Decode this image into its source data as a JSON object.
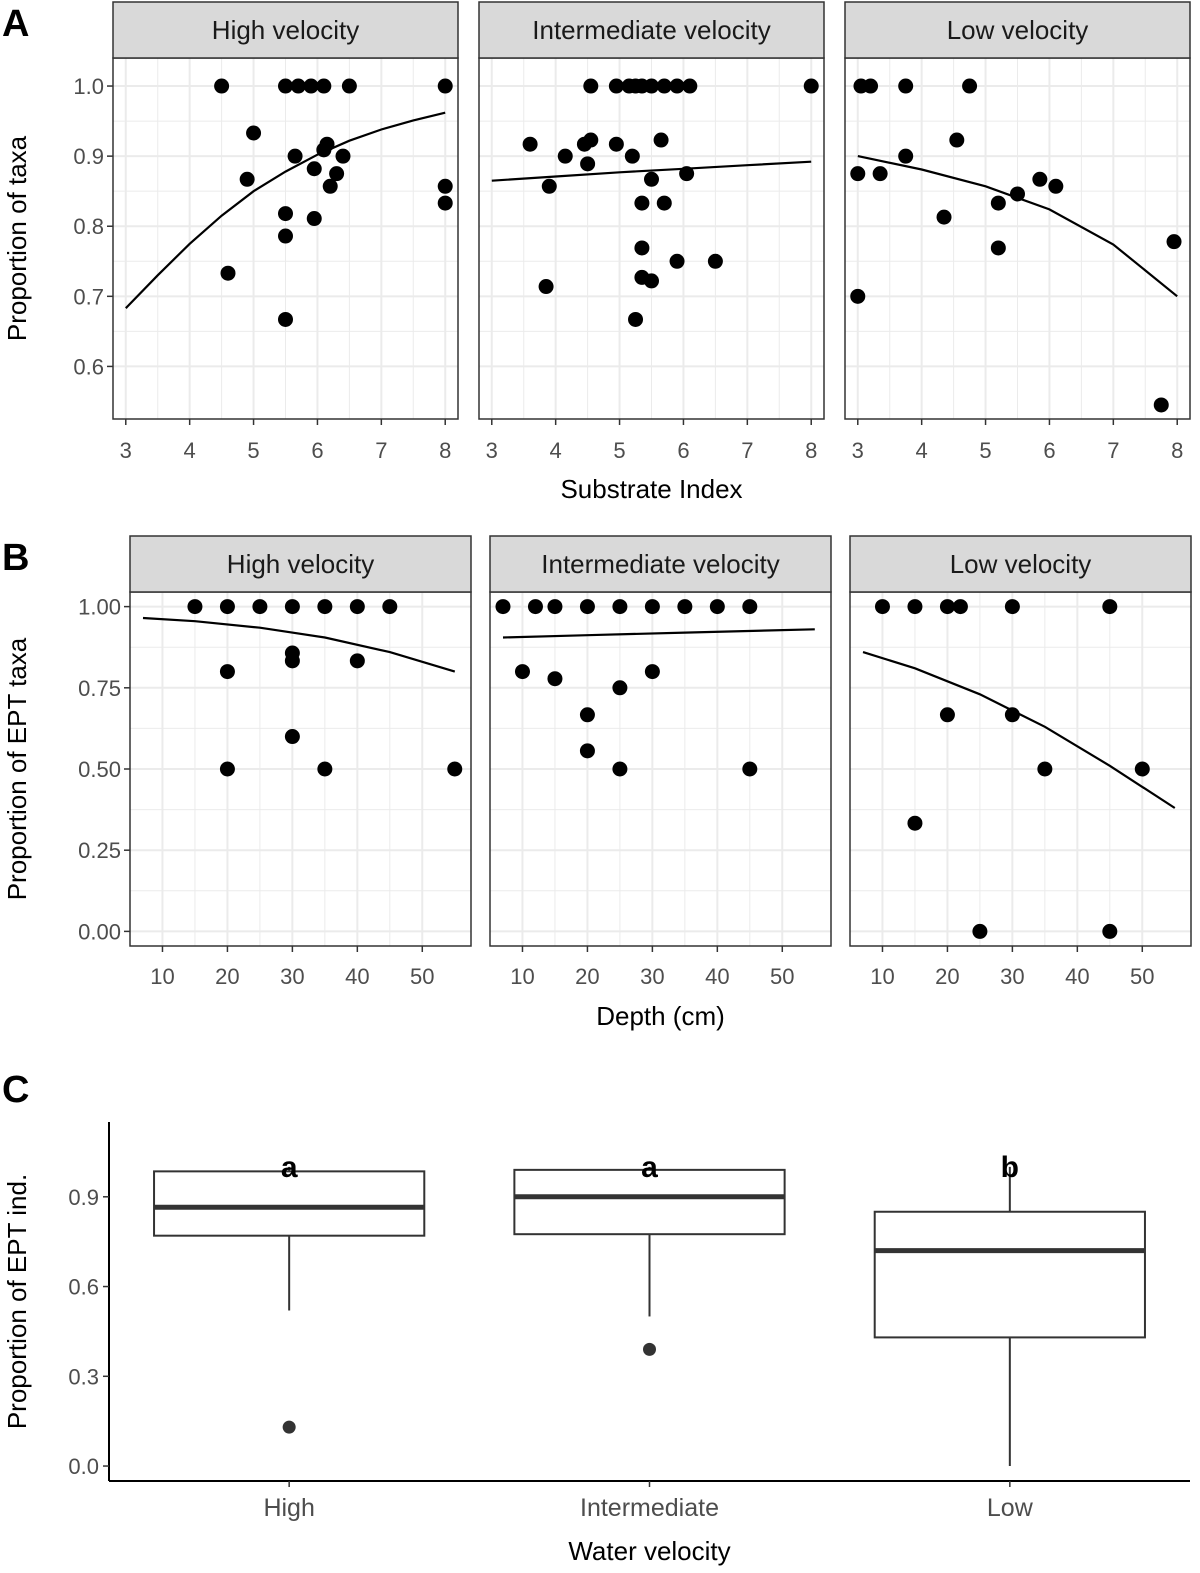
{
  "colors": {
    "point": "#000000",
    "grid": "#ebebeb",
    "strip_bg": "#d9d9d9",
    "frame": "#333333",
    "box_point": "#333333"
  },
  "chart_data": [
    {
      "panel": "A",
      "type": "scatter",
      "xlabel": "Substrate Index",
      "ylabel": "Proportion of taxa",
      "xlim": [
        2.8,
        8.2
      ],
      "ylim": [
        0.525,
        1.04
      ],
      "x_ticks": [
        3,
        4,
        5,
        6,
        7,
        8
      ],
      "y_ticks": [
        0.6,
        0.7,
        0.8,
        0.9,
        1.0
      ],
      "y_tick_labels": [
        "0.6",
        "0.7",
        "0.8",
        "0.9",
        "1.0"
      ],
      "facets": [
        {
          "label": "High velocity",
          "points": [
            [
              4.5,
              1.0
            ],
            [
              5.5,
              1.0
            ],
            [
              5.7,
              1.0
            ],
            [
              5.9,
              1.0
            ],
            [
              6.1,
              1.0
            ],
            [
              6.5,
              1.0
            ],
            [
              8.0,
              1.0
            ],
            [
              5.0,
              0.933
            ],
            [
              5.65,
              0.9
            ],
            [
              6.15,
              0.917
            ],
            [
              6.1,
              0.909
            ],
            [
              6.4,
              0.9
            ],
            [
              5.95,
              0.882
            ],
            [
              6.3,
              0.875
            ],
            [
              4.9,
              0.867
            ],
            [
              6.2,
              0.857
            ],
            [
              8.0,
              0.857
            ],
            [
              8.0,
              0.833
            ],
            [
              5.5,
              0.818
            ],
            [
              5.95,
              0.811
            ],
            [
              5.5,
              0.786
            ],
            [
              4.6,
              0.733
            ],
            [
              5.5,
              0.667
            ]
          ],
          "fit": [
            [
              3.0,
              0.683
            ],
            [
              3.5,
              0.73
            ],
            [
              4.0,
              0.775
            ],
            [
              4.5,
              0.815
            ],
            [
              5.0,
              0.85
            ],
            [
              5.5,
              0.878
            ],
            [
              6.0,
              0.902
            ],
            [
              6.5,
              0.922
            ],
            [
              7.0,
              0.938
            ],
            [
              7.5,
              0.951
            ],
            [
              8.0,
              0.962
            ]
          ]
        },
        {
          "label": "Intermediate velocity",
          "points": [
            [
              4.55,
              1.0
            ],
            [
              4.95,
              1.0
            ],
            [
              5.15,
              1.0
            ],
            [
              5.25,
              1.0
            ],
            [
              5.35,
              1.0
            ],
            [
              5.5,
              1.0
            ],
            [
              5.7,
              1.0
            ],
            [
              5.9,
              1.0
            ],
            [
              6.1,
              1.0
            ],
            [
              8.0,
              1.0
            ],
            [
              3.6,
              0.917
            ],
            [
              4.45,
              0.917
            ],
            [
              4.55,
              0.923
            ],
            [
              4.95,
              0.917
            ],
            [
              4.15,
              0.9
            ],
            [
              5.2,
              0.9
            ],
            [
              4.5,
              0.889
            ],
            [
              5.65,
              0.923
            ],
            [
              6.05,
              0.875
            ],
            [
              5.5,
              0.867
            ],
            [
              3.9,
              0.857
            ],
            [
              5.35,
              0.833
            ],
            [
              5.7,
              0.833
            ],
            [
              5.35,
              0.769
            ],
            [
              5.9,
              0.75
            ],
            [
              6.5,
              0.75
            ],
            [
              5.35,
              0.727
            ],
            [
              5.5,
              0.722
            ],
            [
              3.85,
              0.714
            ],
            [
              5.25,
              0.667
            ]
          ],
          "fit": [
            [
              3.0,
              0.865
            ],
            [
              4.0,
              0.871
            ],
            [
              5.0,
              0.877
            ],
            [
              6.0,
              0.882
            ],
            [
              7.0,
              0.887
            ],
            [
              8.0,
              0.892
            ]
          ]
        },
        {
          "label": "Low velocity",
          "points": [
            [
              3.05,
              1.0
            ],
            [
              3.2,
              1.0
            ],
            [
              3.75,
              1.0
            ],
            [
              4.75,
              1.0
            ],
            [
              4.55,
              0.923
            ],
            [
              3.75,
              0.9
            ],
            [
              3.0,
              0.875
            ],
            [
              3.35,
              0.875
            ],
            [
              5.85,
              0.867
            ],
            [
              6.1,
              0.857
            ],
            [
              5.5,
              0.846
            ],
            [
              5.2,
              0.833
            ],
            [
              4.35,
              0.813
            ],
            [
              7.95,
              0.778
            ],
            [
              5.2,
              0.769
            ],
            [
              3.0,
              0.7
            ],
            [
              7.75,
              0.545
            ]
          ],
          "fit": [
            [
              3.0,
              0.9
            ],
            [
              4.0,
              0.881
            ],
            [
              5.0,
              0.857
            ],
            [
              6.0,
              0.824
            ],
            [
              7.0,
              0.774
            ],
            [
              8.0,
              0.7
            ]
          ]
        }
      ]
    },
    {
      "panel": "B",
      "type": "scatter",
      "xlabel": "Depth (cm)",
      "ylabel": "Proportion of EPT taxa",
      "xlim": [
        5,
        57.5
      ],
      "ylim": [
        -0.045,
        1.045
      ],
      "x_ticks": [
        10,
        20,
        30,
        40,
        50
      ],
      "y_ticks": [
        0.0,
        0.25,
        0.5,
        0.75,
        1.0
      ],
      "y_tick_labels": [
        "0.00",
        "0.25",
        "0.50",
        "0.75",
        "1.00"
      ],
      "facets": [
        {
          "label": "High velocity",
          "points": [
            [
              15,
              1.0
            ],
            [
              20,
              1.0
            ],
            [
              25,
              1.0
            ],
            [
              30,
              1.0
            ],
            [
              35,
              1.0
            ],
            [
              40,
              1.0
            ],
            [
              45,
              1.0
            ],
            [
              30,
              0.857
            ],
            [
              30,
              0.833
            ],
            [
              40,
              0.833
            ],
            [
              20,
              0.8
            ],
            [
              30,
              0.6
            ],
            [
              20,
              0.5
            ],
            [
              35,
              0.5
            ],
            [
              55,
              0.5
            ]
          ],
          "fit": [
            [
              7,
              0.965
            ],
            [
              15,
              0.955
            ],
            [
              25,
              0.935
            ],
            [
              35,
              0.905
            ],
            [
              45,
              0.86
            ],
            [
              55,
              0.8
            ]
          ]
        },
        {
          "label": "Intermediate velocity",
          "points": [
            [
              7,
              1.0
            ],
            [
              12,
              1.0
            ],
            [
              15,
              1.0
            ],
            [
              20,
              1.0
            ],
            [
              25,
              1.0
            ],
            [
              30,
              1.0
            ],
            [
              35,
              1.0
            ],
            [
              40,
              1.0
            ],
            [
              45,
              1.0
            ],
            [
              10,
              0.8
            ],
            [
              30,
              0.8
            ],
            [
              15,
              0.778
            ],
            [
              25,
              0.75
            ],
            [
              20,
              0.667
            ],
            [
              20,
              0.556
            ],
            [
              25,
              0.5
            ],
            [
              45,
              0.5
            ]
          ],
          "fit": [
            [
              7,
              0.905
            ],
            [
              20,
              0.912
            ],
            [
              35,
              0.92
            ],
            [
              55,
              0.93
            ]
          ]
        },
        {
          "label": "Low velocity",
          "points": [
            [
              10,
              1.0
            ],
            [
              15,
              1.0
            ],
            [
              20,
              1.0
            ],
            [
              22,
              1.0
            ],
            [
              30,
              1.0
            ],
            [
              45,
              1.0
            ],
            [
              20,
              0.667
            ],
            [
              30,
              0.667
            ],
            [
              35,
              0.5
            ],
            [
              50,
              0.5
            ],
            [
              15,
              0.333
            ],
            [
              25,
              0.0
            ],
            [
              45,
              0.0
            ]
          ],
          "fit": [
            [
              7,
              0.86
            ],
            [
              15,
              0.81
            ],
            [
              25,
              0.73
            ],
            [
              35,
              0.63
            ],
            [
              45,
              0.51
            ],
            [
              55,
              0.38
            ]
          ]
        }
      ]
    },
    {
      "panel": "C",
      "type": "box",
      "xlabel": "Water velocity",
      "ylabel": "Proportion of EPT ind.",
      "ylim": [
        -0.05,
        1.15
      ],
      "y_ticks": [
        0.0,
        0.3,
        0.6,
        0.9
      ],
      "y_tick_labels": [
        "0.0",
        "0.3",
        "0.6",
        "0.9"
      ],
      "categories": [
        "High",
        "Intermediate",
        "Low"
      ],
      "boxes": [
        {
          "category": "High",
          "whisker_low": 0.52,
          "q1": 0.77,
          "median": 0.865,
          "q3": 0.985,
          "whisker_high": 1.0,
          "outliers": [
            0.13
          ],
          "letter": "a"
        },
        {
          "category": "Intermediate",
          "whisker_low": 0.5,
          "q1": 0.775,
          "median": 0.9,
          "q3": 0.99,
          "whisker_high": 1.0,
          "outliers": [
            0.39
          ],
          "letter": "a"
        },
        {
          "category": "Low",
          "whisker_low": 0.0,
          "q1": 0.43,
          "median": 0.72,
          "q3": 0.85,
          "whisker_high": 1.0,
          "outliers": [],
          "letter": "b"
        }
      ]
    }
  ]
}
